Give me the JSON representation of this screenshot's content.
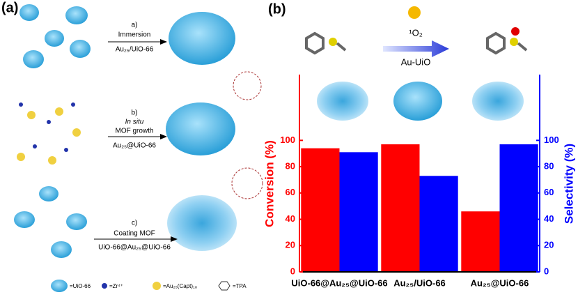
{
  "panel_a": {
    "label": "(a)",
    "step_a": {
      "tag": "a)",
      "line1": "Immersion",
      "line2": "Au₂₅/UiO-66"
    },
    "step_b": {
      "tag": "b)",
      "line1": "In situ",
      "line2": "MOF growth",
      "line3": "Au₂₅@UiO-66"
    },
    "step_c": {
      "tag": "c)",
      "line1": "Coating MOF",
      "line2": "UiO-66@Au₂₅@UiO-66"
    },
    "legend": [
      "=UiO-66",
      "=Zr⁴⁺",
      "=Au₂₅(Capt)₁₈",
      "=TPA"
    ]
  },
  "panel_b": {
    "label": "(b)",
    "reagent": "¹O₂",
    "catalyst": "Au-UiO"
  },
  "chart_data": {
    "type": "bar",
    "categories": [
      "UiO-66@Au₂₅@UiO-66",
      "Au₂₅/UiO-66",
      "Au₂₅@UiO-66"
    ],
    "series": [
      {
        "name": "Conversion (%)",
        "color": "#ff0000",
        "values": [
          94,
          97,
          46
        ]
      },
      {
        "name": "Selectivity (%)",
        "color": "#0000ff",
        "values": [
          91,
          73,
          97
        ],
        "axis": "y2"
      }
    ],
    "ylim": [
      0,
      150
    ],
    "yticks": [
      0,
      20,
      40,
      60,
      80,
      100
    ],
    "y2lim": [
      0,
      150
    ],
    "y2ticks": [
      0,
      20,
      40,
      60,
      80,
      100
    ]
  }
}
